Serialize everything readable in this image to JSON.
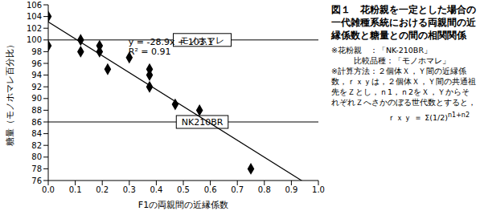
{
  "chart_data": {
    "type": "scatter",
    "x_label": "F1の両親間の近縁係数",
    "y_label": "糖量（モノホマレ百分比）",
    "x": [
      0,
      0,
      0.12,
      0.12,
      0.19,
      0.19,
      0.22,
      0.3,
      0.375,
      0.375,
      0.375,
      0.47,
      0.56,
      0.75
    ],
    "values": [
      104,
      99,
      100,
      98,
      99,
      98,
      95,
      97,
      95,
      94,
      92,
      89,
      88,
      78
    ],
    "color": "#000000",
    "marker": "diamond",
    "xlim": [
      0,
      1
    ],
    "xticks": [
      {
        "value": 0,
        "label": "0.0"
      },
      0.1,
      0.2,
      0.3,
      0.4,
      0.5,
      0.6,
      0.7,
      0.8,
      0.9,
      {
        "value": 1,
        "label": "1.0"
      }
    ],
    "ylim": [
      76,
      106
    ],
    "yticks": [
      76,
      78,
      80,
      82,
      84,
      86,
      88,
      90,
      92,
      94,
      96,
      98,
      100,
      102,
      104,
      106
    ],
    "grid": false,
    "trendline": {
      "x": [
        0,
        0.94
      ],
      "values": [
        103.1,
        75.93
      ],
      "color": "#000000",
      "equation": "y = -28.9x + 103.1",
      "r2": "R² = 0.91"
    },
    "reference_lines": [
      {
        "label": "モノホマレ",
        "value": 100
      },
      {
        "label": "NK210BR",
        "value": 86
      }
    ]
  },
  "caption": {
    "title": "図１　花粉親を一定とした場合の一代雑種系統における両親間の近縁係数と糖量との間の相関関係",
    "notes": [
      "※花粉親　：「NK-210BR」",
      "比較品種：「モノホマレ」",
      "※計算方法：２個体Ｘ，Ｙ間の近縁係数，ｒｘｙは，２個体Ｘ，Ｙ間の共通祖先をＺとし，ｎ1，ｎ2をＸ，ＹからそれぞれＺへさかのぼる世代数とすると，"
    ],
    "formula": {
      "base": "ｒｘｙ ＝ Σ(1/2)",
      "exponent": "n1+n2"
    }
  }
}
